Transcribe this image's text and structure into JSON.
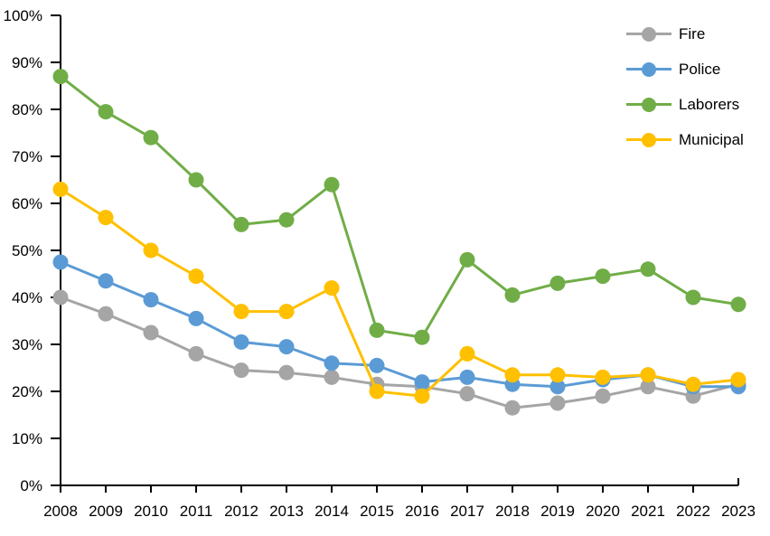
{
  "chart_data": {
    "type": "line",
    "title": "",
    "xlabel": "",
    "ylabel": "",
    "categories": [
      "2008",
      "2009",
      "2010",
      "2011",
      "2012",
      "2013",
      "2014",
      "2015",
      "2016",
      "2017",
      "2018",
      "2019",
      "2020",
      "2021",
      "2022",
      "2023"
    ],
    "y_tick_labels": [
      "0%",
      "10%",
      "20%",
      "30%",
      "40%",
      "50%",
      "60%",
      "70%",
      "80%",
      "90%",
      "100%"
    ],
    "ylim": [
      0,
      100
    ],
    "y_tick_step": 10,
    "grid": false,
    "legend_position": "top-right",
    "axis_color": "#000000",
    "background_color": "#ffffff",
    "series": [
      {
        "name": "Fire",
        "color": "#A5A5A5",
        "values": [
          40,
          36.5,
          32.5,
          28,
          24.5,
          24,
          23,
          21.5,
          21,
          19.5,
          16.5,
          17.5,
          19,
          21,
          19,
          21.5
        ]
      },
      {
        "name": "Police",
        "color": "#5B9BD5",
        "values": [
          47.5,
          43.5,
          39.5,
          35.5,
          30.5,
          29.5,
          26,
          25.5,
          22,
          23,
          21.5,
          21,
          22.5,
          23.5,
          21,
          21
        ]
      },
      {
        "name": "Laborers",
        "color": "#70AD47",
        "values": [
          87,
          79.5,
          74,
          65,
          55.5,
          56.5,
          64,
          33,
          31.5,
          48,
          40.5,
          43,
          44.5,
          46,
          40,
          38.5
        ]
      },
      {
        "name": "Municipal",
        "color": "#FFC000",
        "values": [
          63,
          57,
          50,
          44.5,
          37,
          37,
          42,
          20,
          19,
          28,
          23.5,
          23.5,
          23,
          23.5,
          21.5,
          22.5
        ]
      }
    ]
  }
}
